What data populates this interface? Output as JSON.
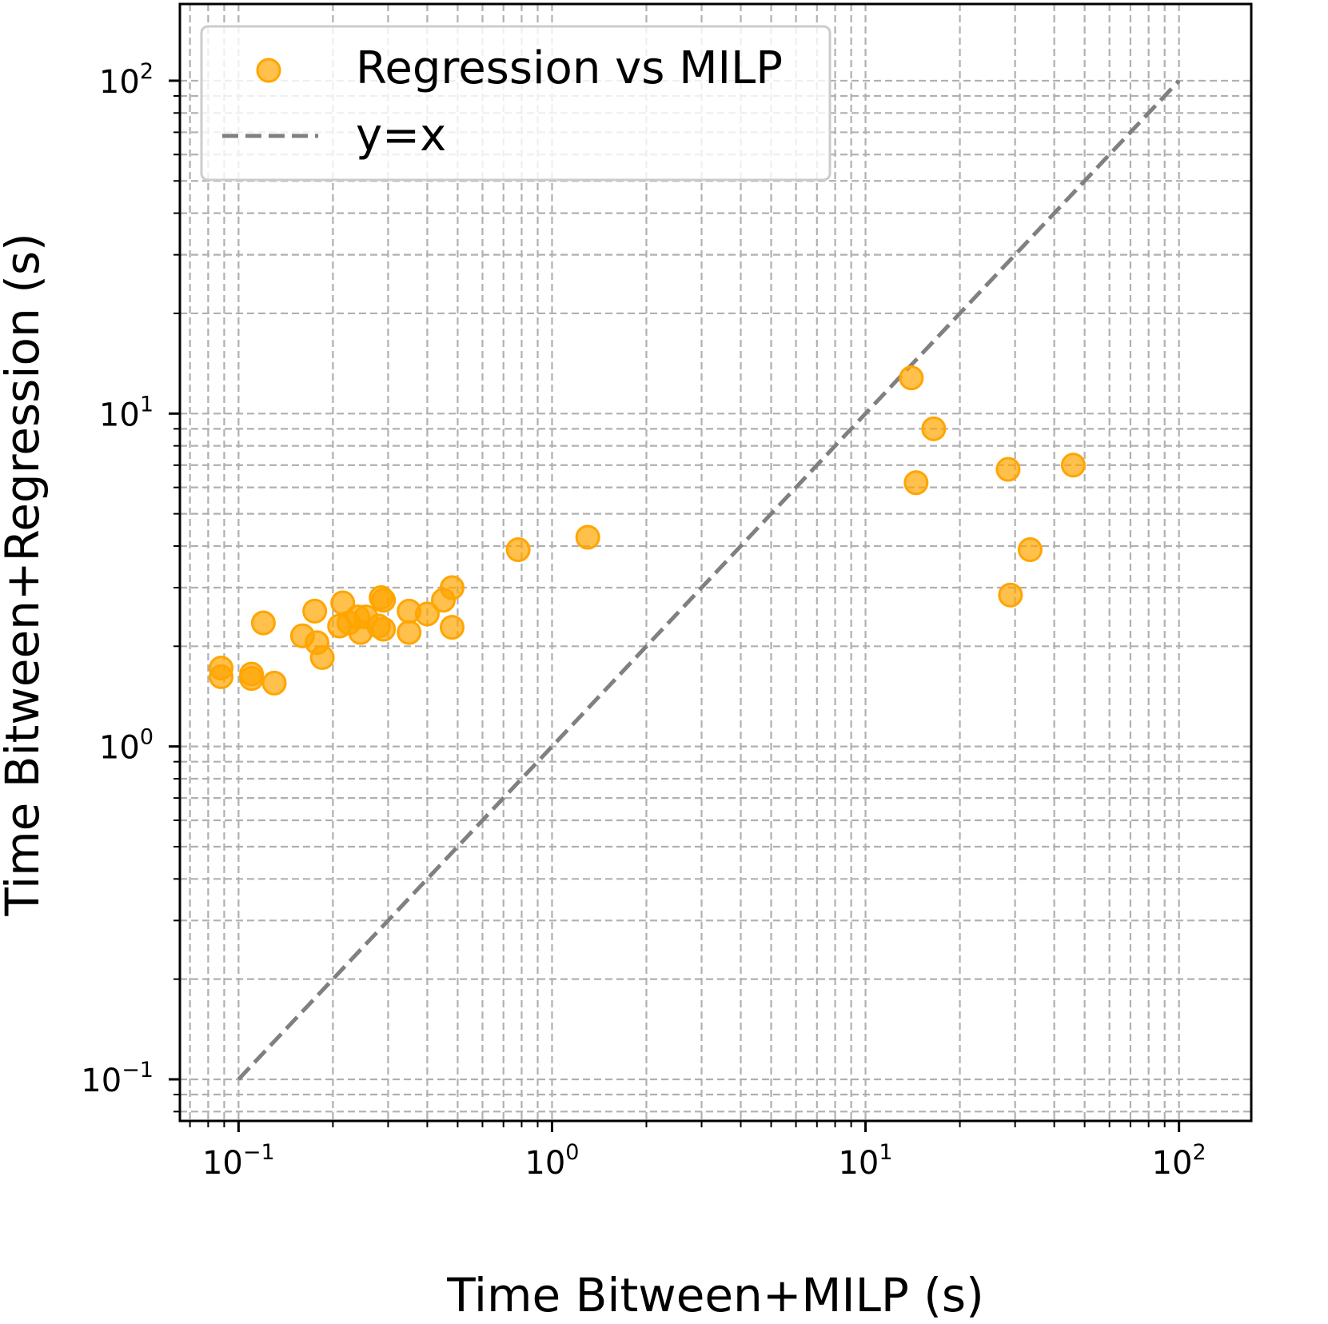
{
  "chart_data": {
    "type": "scatter",
    "title": "",
    "xlabel": "Time Bitween+MILP (s)",
    "ylabel": "Time Bitween+Regression (s)",
    "xscale": "log",
    "yscale": "log",
    "xlim": [
      0.065,
      170
    ],
    "ylim": [
      0.075,
      170
    ],
    "grid": true,
    "grid_which": "both",
    "legend_position": "top-left",
    "x_ticks": [
      {
        "value": 0.1,
        "base": "10",
        "exp": "−1"
      },
      {
        "value": 1,
        "base": "10",
        "exp": "0"
      },
      {
        "value": 10,
        "base": "10",
        "exp": "1"
      },
      {
        "value": 100,
        "base": "10",
        "exp": "2"
      }
    ],
    "y_ticks": [
      {
        "value": 0.1,
        "base": "10",
        "exp": "−1"
      },
      {
        "value": 1,
        "base": "10",
        "exp": "0"
      },
      {
        "value": 10,
        "base": "10",
        "exp": "1"
      },
      {
        "value": 100,
        "base": "10",
        "exp": "2"
      }
    ],
    "series": [
      {
        "name": "Regression vs MILP",
        "kind": "scatter",
        "color": "#FFA500",
        "points": [
          [
            0.088,
            1.72
          ],
          [
            0.088,
            1.62
          ],
          [
            0.11,
            1.65
          ],
          [
            0.11,
            1.6
          ],
          [
            0.12,
            2.35
          ],
          [
            0.13,
            1.55
          ],
          [
            0.16,
            2.15
          ],
          [
            0.175,
            2.55
          ],
          [
            0.178,
            2.05
          ],
          [
            0.185,
            1.85
          ],
          [
            0.21,
            2.3
          ],
          [
            0.215,
            2.7
          ],
          [
            0.225,
            2.35
          ],
          [
            0.24,
            2.45
          ],
          [
            0.245,
            2.2
          ],
          [
            0.255,
            2.45
          ],
          [
            0.28,
            2.3
          ],
          [
            0.285,
            2.8
          ],
          [
            0.29,
            2.25
          ],
          [
            0.29,
            2.75
          ],
          [
            0.35,
            2.55
          ],
          [
            0.35,
            2.2
          ],
          [
            0.4,
            2.5
          ],
          [
            0.45,
            2.75
          ],
          [
            0.48,
            3.0
          ],
          [
            0.48,
            2.28
          ],
          [
            0.78,
            3.9
          ],
          [
            1.3,
            4.25
          ],
          [
            14.0,
            12.8
          ],
          [
            16.5,
            9.0
          ],
          [
            14.5,
            6.2
          ],
          [
            28.5,
            6.8
          ],
          [
            46.0,
            7.0
          ],
          [
            33.5,
            3.9
          ],
          [
            29.0,
            2.85
          ]
        ]
      },
      {
        "name": "y=x",
        "kind": "line",
        "style": "dashed",
        "color": "#808080",
        "points": [
          [
            0.1,
            0.1
          ],
          [
            100,
            100
          ]
        ]
      }
    ]
  }
}
